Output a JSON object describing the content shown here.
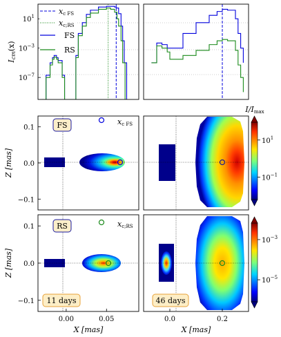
{
  "chart_data": [
    {
      "type": "line",
      "panel": "top-left",
      "ylabel": "I_cm(x)",
      "ylabel_display": "I",
      "ylabel_sub": "cm",
      "ylabel_suffix": "(x)",
      "yscale": "log",
      "ylim": [
        1e-10,
        1000.0
      ],
      "yticks": [
        {
          "exp": "1",
          "v": 10.0
        },
        {
          "exp": "−3",
          "v": 0.001
        },
        {
          "exp": "−7",
          "v": 1e-07
        }
      ],
      "xlim": [
        -0.035,
        0.09
      ],
      "legend_position": "top-left",
      "legend": [
        {
          "label": "x_c FS",
          "main": "x",
          "sub": "c FS",
          "style": "dashed",
          "color": "#0000dd"
        },
        {
          "label": "x_c;RS",
          "main": "x",
          "sub": "c;RS",
          "style": "dotted",
          "color": "#1a8a1a"
        },
        {
          "label": "FS",
          "main": "FS",
          "sub": "",
          "style": "solid",
          "color": "#0000dd"
        },
        {
          "label": "RS",
          "main": "RS",
          "sub": "",
          "style": "solid",
          "color": "#1a8a1a"
        }
      ],
      "vlines": [
        {
          "name": "x_c FS",
          "x": 0.062,
          "style": "dashed",
          "color": "#0000dd"
        },
        {
          "name": "x_c;RS",
          "x": 0.052,
          "style": "dotted",
          "color": "#1a8a1a"
        }
      ],
      "series": [
        {
          "name": "FS",
          "color": "#0000dd",
          "x": [
            -0.03,
            -0.025,
            -0.02,
            -0.017,
            -0.015,
            -0.012,
            -0.01,
            -0.005,
            -0.002,
            0.0,
            0.01,
            0.012,
            0.015,
            0.02,
            0.025,
            0.03,
            0.04,
            0.05,
            0.055,
            0.06,
            0.062,
            0.065,
            0.068,
            0.07,
            0.072,
            0.075
          ],
          "y": [
            1e-10,
            2e-07,
            1e-05,
            5e-05,
            0.0001,
            5e-05,
            2e-05,
            2e-07,
            1e-10,
            1e-10,
            1e-10,
            0.0001,
            0.1,
            3.0,
            40.0,
            150.0,
            400.0,
            500.0,
            500.0,
            400.0,
            300.0,
            50.0,
            1.0,
            0.01,
            1e-05,
            1e-10
          ]
        },
        {
          "name": "RS",
          "color": "#1a8a1a",
          "x": [
            -0.03,
            -0.025,
            -0.02,
            -0.017,
            -0.015,
            -0.012,
            -0.01,
            -0.005,
            -0.002,
            0.0,
            0.01,
            0.012,
            0.015,
            0.02,
            0.025,
            0.03,
            0.04,
            0.05,
            0.055,
            0.06,
            0.063,
            0.065,
            0.068,
            0.07,
            0.073
          ],
          "y": [
            1e-10,
            1e-07,
            5e-06,
            3e-05,
            6e-05,
            3e-05,
            1e-05,
            1e-07,
            1e-10,
            1e-10,
            1e-10,
            5e-05,
            0.05,
            1.0,
            15.0,
            60.0,
            200.0,
            300.0,
            200.0,
            80.0,
            10.0,
            1.0,
            0.01,
            1e-05,
            1e-10
          ]
        }
      ]
    },
    {
      "type": "line",
      "panel": "top-right",
      "yscale": "log",
      "ylim": [
        1e-10,
        1000.0
      ],
      "xlim": [
        -0.1,
        0.3
      ],
      "vlines": [
        {
          "name": "x_c",
          "x": 0.2,
          "style": "dashed",
          "color": "#0000dd"
        }
      ],
      "series": [
        {
          "name": "FS",
          "color": "#0000dd",
          "x": [
            -0.07,
            -0.05,
            -0.03,
            -0.01,
            0.0,
            0.05,
            0.1,
            0.15,
            0.18,
            0.2,
            0.22,
            0.25,
            0.26,
            0.27,
            0.28
          ],
          "y": [
            1e-05,
            0.005,
            0.003,
            0.001,
            0.001,
            0.1,
            3.0,
            30.0,
            100.0,
            200.0,
            150.0,
            10.0,
            0.1,
            0.001,
            1e-05
          ]
        },
        {
          "name": "RS",
          "color": "#1a8a1a",
          "x": [
            -0.07,
            -0.05,
            -0.03,
            -0.01,
            0.0,
            0.05,
            0.1,
            0.15,
            0.18,
            0.2,
            0.22,
            0.25,
            0.26,
            0.27,
            0.28
          ],
          "y": [
            1e-05,
            0.002,
            0.001,
            0.0003,
            3e-05,
            0.0001,
            0.0005,
            0.003,
            0.01,
            0.015,
            0.01,
            0.0005,
            5e-06,
            1e-07,
            1e-09
          ]
        }
      ]
    },
    {
      "type": "heatmap",
      "panel": "middle-left",
      "label_box": "FS",
      "marker_label": "x_c FS",
      "marker_main": "x",
      "marker_sub": "c FS",
      "marker_color": "#0000dd",
      "ylabel": "Z [mas]",
      "xlim": [
        -0.035,
        0.09
      ],
      "ylim": [
        -0.13,
        0.13
      ],
      "yticks": [
        "0.1",
        "0.0",
        "−0.1"
      ],
      "ytick_values": [
        0.1,
        0.0,
        -0.1
      ],
      "xtick_values": [
        0.0,
        0.05
      ],
      "marker_at": {
        "x": 0.062,
        "z": 0.0
      },
      "legend_marker_at": {
        "x": 0.046,
        "z": 0.115
      }
    },
    {
      "type": "heatmap",
      "panel": "middle-right",
      "xlim": [
        -0.1,
        0.3
      ],
      "ylim": [
        -0.13,
        0.13
      ],
      "xtick_values": [
        0.0,
        0.2
      ],
      "marker_at": {
        "x": 0.2,
        "z": 0.0
      },
      "colorbar": {
        "label": "I/I_max",
        "label_main": "I/I",
        "label_sub": "max",
        "scale": "log",
        "ticks": [
          {
            "exp": "1",
            "frac": 0.77
          },
          {
            "exp": "−1",
            "frac": 0.29
          }
        ]
      }
    },
    {
      "type": "heatmap",
      "panel": "bottom-left",
      "label_box": "RS",
      "marker_label": "x_c;RS",
      "marker_main": "x",
      "marker_sub": "c;RS",
      "marker_color": "#1a8a1a",
      "time_label": "11 days",
      "ylabel": "Z [mas]",
      "xlabel": "X [mas]",
      "xlim": [
        -0.035,
        0.09
      ],
      "ylim": [
        -0.13,
        0.13
      ],
      "xticks": [
        "0.00",
        "0.05"
      ],
      "xtick_values": [
        0.0,
        0.05
      ],
      "yticks": [
        "0.1",
        "0.0",
        "−0.1"
      ],
      "ytick_values": [
        0.1,
        0.0,
        -0.1
      ],
      "marker_at": {
        "x": 0.052,
        "z": 0.0
      },
      "legend_marker_at": {
        "x": 0.046,
        "z": 0.115
      }
    },
    {
      "type": "heatmap",
      "panel": "bottom-right",
      "time_label": "46 days",
      "xlabel": "X [mas]",
      "xlim": [
        -0.1,
        0.3
      ],
      "ylim": [
        -0.13,
        0.13
      ],
      "xticks": [
        "0.0",
        "0.2"
      ],
      "xtick_values": [
        0.0,
        0.2
      ],
      "marker_at": {
        "x": 0.2,
        "z": 0.0
      },
      "colorbar": {
        "scale": "log",
        "ticks": [
          {
            "exp": "−3",
            "frac": 0.79
          },
          {
            "exp": "−5",
            "frac": 0.28
          }
        ]
      }
    }
  ]
}
